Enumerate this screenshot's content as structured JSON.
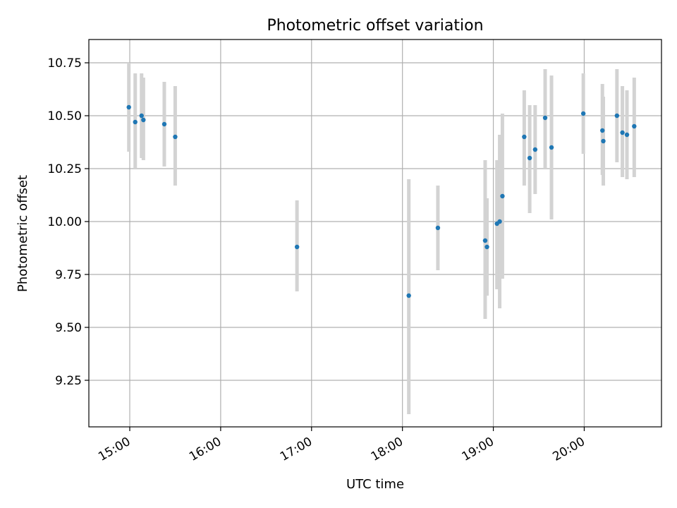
{
  "chart_data": {
    "type": "scatter",
    "title": "Photometric offset variation",
    "xlabel": "UTC time",
    "ylabel": "Photometric offset",
    "xlim_hours": [
      14.55,
      20.85
    ],
    "ylim": [
      9.03,
      10.86
    ],
    "x_ticks": [
      {
        "value": 15,
        "label": "15:00"
      },
      {
        "value": 16,
        "label": "16:00"
      },
      {
        "value": 17,
        "label": "17:00"
      },
      {
        "value": 18,
        "label": "18:00"
      },
      {
        "value": 19,
        "label": "19:00"
      },
      {
        "value": 20,
        "label": "20:00"
      }
    ],
    "y_ticks": [
      {
        "value": 9.25,
        "label": "9.25"
      },
      {
        "value": 9.5,
        "label": "9.50"
      },
      {
        "value": 9.75,
        "label": "9.75"
      },
      {
        "value": 10.0,
        "label": "10.00"
      },
      {
        "value": 10.25,
        "label": "10.25"
      },
      {
        "value": 10.5,
        "label": "10.50"
      },
      {
        "value": 10.75,
        "label": "10.75"
      }
    ],
    "grid": true,
    "series": [
      {
        "name": "offset",
        "color": "#1f77b4",
        "error_color": "#d3d3d3",
        "points": [
          {
            "x": 14.99,
            "y": 10.54,
            "lo": 10.33,
            "hi": 10.75
          },
          {
            "x": 15.06,
            "y": 10.47,
            "lo": 10.25,
            "hi": 10.7
          },
          {
            "x": 15.13,
            "y": 10.5,
            "lo": 10.3,
            "hi": 10.7
          },
          {
            "x": 15.15,
            "y": 10.48,
            "lo": 10.29,
            "hi": 10.68
          },
          {
            "x": 15.38,
            "y": 10.46,
            "lo": 10.26,
            "hi": 10.66
          },
          {
            "x": 15.5,
            "y": 10.4,
            "lo": 10.17,
            "hi": 10.64
          },
          {
            "x": 16.84,
            "y": 9.88,
            "lo": 9.67,
            "hi": 10.1
          },
          {
            "x": 18.07,
            "y": 9.65,
            "lo": 9.09,
            "hi": 10.2
          },
          {
            "x": 18.39,
            "y": 9.97,
            "lo": 9.77,
            "hi": 10.17
          },
          {
            "x": 18.91,
            "y": 9.91,
            "lo": 9.54,
            "hi": 10.29
          },
          {
            "x": 18.93,
            "y": 9.88,
            "lo": 9.65,
            "hi": 10.11
          },
          {
            "x": 19.04,
            "y": 9.99,
            "lo": 9.68,
            "hi": 10.29
          },
          {
            "x": 19.07,
            "y": 10.0,
            "lo": 9.59,
            "hi": 10.41
          },
          {
            "x": 19.1,
            "y": 10.12,
            "lo": 9.73,
            "hi": 10.51
          },
          {
            "x": 19.34,
            "y": 10.4,
            "lo": 10.17,
            "hi": 10.62
          },
          {
            "x": 19.4,
            "y": 10.3,
            "lo": 10.04,
            "hi": 10.55
          },
          {
            "x": 19.46,
            "y": 10.34,
            "lo": 10.13,
            "hi": 10.55
          },
          {
            "x": 19.57,
            "y": 10.49,
            "lo": 10.25,
            "hi": 10.72
          },
          {
            "x": 19.64,
            "y": 10.35,
            "lo": 10.01,
            "hi": 10.69
          },
          {
            "x": 19.99,
            "y": 10.51,
            "lo": 10.32,
            "hi": 10.7
          },
          {
            "x": 20.2,
            "y": 10.43,
            "lo": 10.22,
            "hi": 10.65
          },
          {
            "x": 20.21,
            "y": 10.38,
            "lo": 10.17,
            "hi": 10.59
          },
          {
            "x": 20.36,
            "y": 10.5,
            "lo": 10.28,
            "hi": 10.72
          },
          {
            "x": 20.42,
            "y": 10.42,
            "lo": 10.21,
            "hi": 10.64
          },
          {
            "x": 20.47,
            "y": 10.41,
            "lo": 10.2,
            "hi": 10.62
          },
          {
            "x": 20.55,
            "y": 10.45,
            "lo": 10.21,
            "hi": 10.68
          }
        ]
      }
    ]
  }
}
